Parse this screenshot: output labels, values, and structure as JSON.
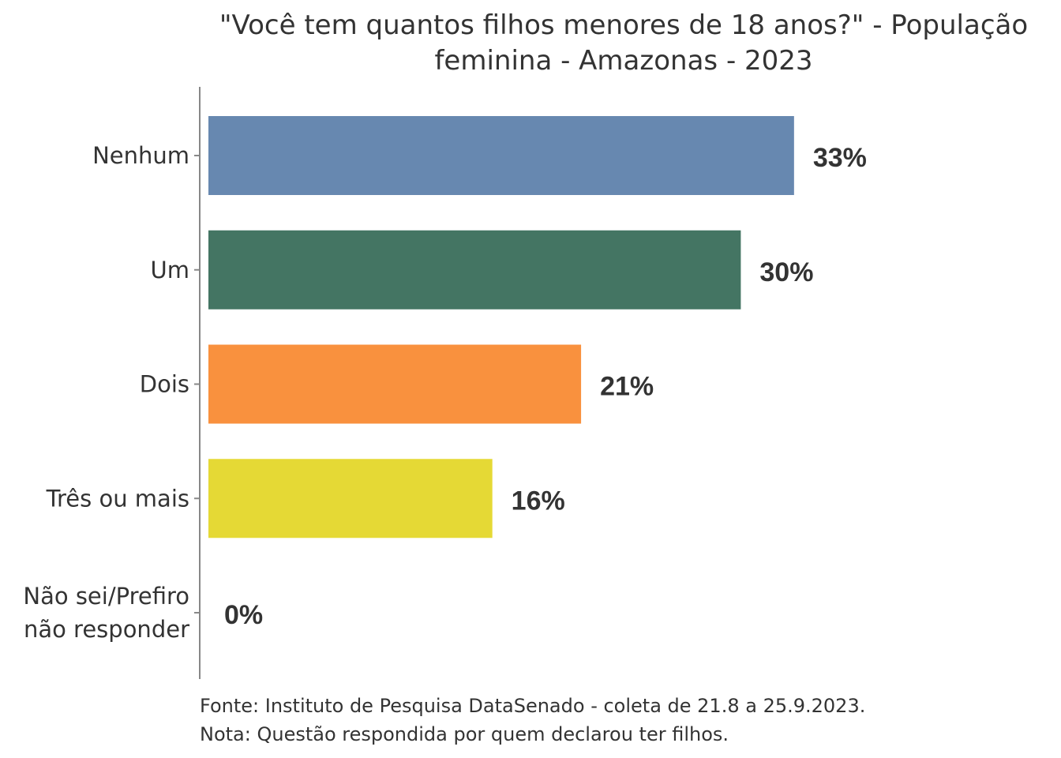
{
  "chart_data": {
    "type": "bar",
    "orientation": "horizontal",
    "title_lines": [
      "\"Você tem quantos filhos menores de 18 anos?\" - População",
      "feminina - Amazonas - 2023"
    ],
    "categories": [
      [
        "Nenhum"
      ],
      [
        "Um"
      ],
      [
        "Dois"
      ],
      [
        "Três ou mais"
      ],
      [
        "Não sei/Prefiro",
        "não responder"
      ]
    ],
    "values": [
      33,
      30,
      21,
      16,
      0
    ],
    "value_labels": [
      "33%",
      "30%",
      "21%",
      "16%",
      "0%"
    ],
    "colors": [
      "#6788b0",
      "#447563",
      "#f9913e",
      "#e5d935",
      "#bbbbbb"
    ],
    "xlim": [
      0,
      40
    ],
    "grid": false
  },
  "footer": {
    "source": "Fonte: Instituto de Pesquisa DataSenado - coleta de 21.8 a 25.9.2023.",
    "note": "Nota: Questão respondida por quem declarou ter filhos."
  }
}
